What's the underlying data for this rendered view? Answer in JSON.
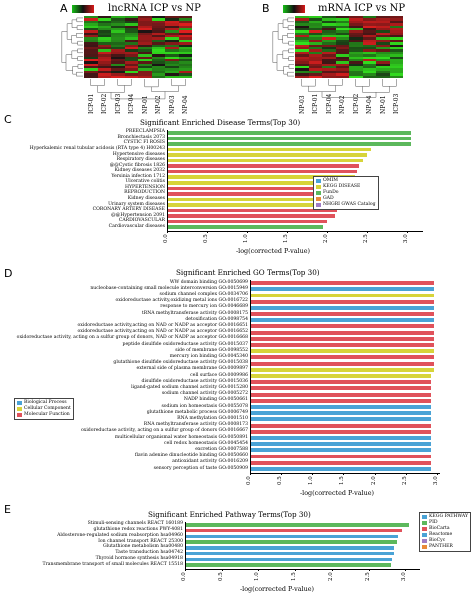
{
  "colors": {
    "green": "#5cb85c",
    "yellow": "#d7d43a",
    "red": "#e0525b",
    "blue": "#4aa3d6",
    "purple": "#a07cc5",
    "orange": "#e98b3a",
    "heat_green": "#18c018",
    "heat_red": "#d81818",
    "heat_dark": "#101010"
  },
  "panel_a": {
    "letter": "A",
    "title": "lncRNA ICP vs NP",
    "samples": [
      "ICP-01",
      "ICP-02",
      "ICP-03",
      "ICP-04",
      "NP-01",
      "NP-02",
      "NP-03",
      "NP-04"
    ]
  },
  "panel_b": {
    "letter": "B",
    "title": "mRNA ICP vs NP",
    "samples": [
      "NP-03",
      "ICP-01",
      "ICP-04",
      "NP-02",
      "ICP-02",
      "NP-04",
      "NP-01",
      "ICP-03"
    ]
  },
  "panel_c": {
    "letter": "C"
  },
  "panel_d": {
    "letter": "D"
  },
  "panel_e": {
    "letter": "E"
  },
  "chart_data": [
    {
      "type": "bar",
      "orientation": "horizontal",
      "title": "Significant Enriched Disease Terms(Top 30)",
      "xlabel": "-log(corrected P-value)",
      "xlim": [
        0,
        3.2
      ],
      "xticks": [
        "0.0",
        "0.5",
        "1.0",
        "1.5",
        "2.0",
        "2.5",
        "3.0"
      ],
      "legend_position": "right",
      "legend": [
        {
          "name": "OMIM",
          "color": "#4aa3d6"
        },
        {
          "name": "KEGG DISEASE",
          "color": "#d7d43a"
        },
        {
          "name": "FunDo",
          "color": "#5cb85c"
        },
        {
          "name": "GAD",
          "color": "#e98b3a"
        },
        {
          "name": "NHGRI GWAS Catalog",
          "color": "#a07cc5"
        }
      ],
      "categories": [
        "PREECLAMPSIA",
        "Bronchiectasis 2073",
        "CYSTIC FI ROSIS",
        "Hyperkalemic renal tubular acidosis (RTA type 4) H00243",
        "Hypertensive diseases",
        "Respiratory diseases",
        "@@Cystic fibrosis 1826",
        "Kidney diseases 2032",
        "Yersinia infection 1712",
        "Ulcerative colitis",
        "HYPERTENSION",
        "REPRODUCTION",
        "Kidney diseases",
        "Urinary system diseases",
        "CORONARY ARTERY DISEASE",
        "@@Hypertension 2091",
        "CARDIOVASCULAR",
        "Cardiovascular diseases"
      ],
      "values": [
        3.05,
        3.05,
        3.05,
        2.55,
        2.5,
        2.45,
        2.4,
        2.38,
        2.35,
        2.25,
        2.22,
        2.2,
        2.18,
        2.15,
        2.12,
        2.1,
        2.0,
        1.95
      ],
      "colors": [
        "#5cb85c",
        "#5cb85c",
        "#5cb85c",
        "#d7d43a",
        "#d7d43a",
        "#d7d43a",
        "#e0525b",
        "#e0525b",
        "#d7d43a",
        "#d7d43a",
        "#e0525b",
        "#e0525b",
        "#d7d43a",
        "#d7d43a",
        "#e0525b",
        "#e0525b",
        "#e0525b",
        "#5cb85c"
      ]
    },
    {
      "type": "bar",
      "orientation": "horizontal",
      "title": "Significant Enriched GO Terms(Top 30)",
      "xlabel": "-log(corrected P-value)",
      "xlim": [
        0,
        3.05
      ],
      "xticks": [
        "0.0",
        "0.5",
        "1.0",
        "1.5",
        "2.0",
        "2.5",
        "3.0"
      ],
      "legend_position": "left",
      "legend": [
        {
          "name": "Biological Process",
          "color": "#4aa3d6"
        },
        {
          "name": "Cellular Component",
          "color": "#d7d43a"
        },
        {
          "name": "Molecular Function",
          "color": "#e0525b"
        }
      ],
      "categories": [
        "WW domain binding GO:0050699",
        "nucleobase-containing small molecule interconversion GO:0015949",
        "sodium channel complex GO:0034706",
        "oxidoreductase activity,oxidizing metal ions GO:0016722",
        "response to mercury ion GO:0046689",
        "tRNA methyltransferase activity GO:0008175",
        "detoxification GO:0098754",
        "oxidoreductase activity,acting on NAD or NADP as acceptor GO:0016651",
        "oxidoreductase activity,acting on NAD or NADP as acceptor GO:0016652",
        "oxidoreductase activity, acting on a sulfur group of donors, NAD or NADP as acceptor GO:0016668",
        "peptide disulfide oxidoreductase activity GO:0015037",
        "side of membrane GO:0098552",
        "mercury ion binding GO:0045340",
        "glutathione disulfide oxidoreductase activity GO:0015038",
        "external side of plasma membrane GO:0009897",
        "cell surface GO:0009986",
        "disulfide oxidoreductase activity GO:0015036",
        "ligand-gated sodium channel activity GO:0015280",
        "sodium channel activity GO:0005272",
        "NADP binding GO:0050661",
        "sodium ion homeostasis GO:0055078",
        "glutathione metabolic process GO:0006749",
        "RNA methylation GO:0001510",
        "RNA methyltransferase activity GO:0008173",
        "oxidoreductase activity, acting on a sulfur group of donors GO:0016667",
        "multicellular organismal water homeostasis GO:0050891",
        "cell redox homeostasis GO:0045454",
        "excretion GO:0007588",
        "flavin adenine dinucleotide binding GO:0050660",
        "antioxidant activity GO:0016209",
        "sensory perception of taste GO:0050909"
      ],
      "values": [
        2.95,
        2.95,
        2.95,
        2.95,
        2.95,
        2.95,
        2.95,
        2.95,
        2.95,
        2.95,
        2.95,
        2.95,
        2.95,
        2.95,
        2.95,
        2.9,
        2.9,
        2.9,
        2.9,
        2.9,
        2.9,
        2.9,
        2.9,
        2.9,
        2.9,
        2.9,
        2.9,
        2.9,
        2.9,
        2.9,
        2.9
      ],
      "colors": [
        "#e0525b",
        "#4aa3d6",
        "#d7d43a",
        "#e0525b",
        "#4aa3d6",
        "#e0525b",
        "#4aa3d6",
        "#e0525b",
        "#e0525b",
        "#e0525b",
        "#e0525b",
        "#d7d43a",
        "#e0525b",
        "#e0525b",
        "#d7d43a",
        "#d7d43a",
        "#e0525b",
        "#e0525b",
        "#e0525b",
        "#e0525b",
        "#4aa3d6",
        "#4aa3d6",
        "#4aa3d6",
        "#e0525b",
        "#e0525b",
        "#4aa3d6",
        "#4aa3d6",
        "#4aa3d6",
        "#e0525b",
        "#e0525b",
        "#4aa3d6"
      ]
    },
    {
      "type": "bar",
      "orientation": "horizontal",
      "title": "Significant Enriched Pathway Terms(Top 30)",
      "xlabel": "-log(corrected P-value)",
      "xlim": [
        0,
        3.2
      ],
      "xticks": [
        "0.0",
        "0.5",
        "1.0",
        "1.5",
        "2.0",
        "2.5",
        "3.0"
      ],
      "legend_position": "right",
      "legend": [
        {
          "name": "KEGG PATHWAY",
          "color": "#4aa3d6"
        },
        {
          "name": "PID",
          "color": "#5cb85c"
        },
        {
          "name": "BioCarta",
          "color": "#e0525b"
        },
        {
          "name": "Reactome",
          "color": "#4aa3d6"
        },
        {
          "name": "BioCyc",
          "color": "#a07cc5"
        },
        {
          "name": "PANTHER",
          "color": "#e98b3a"
        }
      ],
      "categories": [
        "Stimuli-sensing channels REACT 160189",
        "glutathione redox reactions PWY-4081",
        "Aldosterone-regulated sodium reabsorption hsa04960",
        "Ion channel transport REACT 25300",
        "Glutathione metabolism hsa00480",
        "Taste transduction hsa04742",
        "Thyroid hormone synthesis hsa04918",
        "Transmembrane transport of small molecules REACT 15518"
      ],
      "values": [
        3.05,
        2.95,
        2.9,
        2.88,
        2.85,
        2.85,
        2.82,
        2.8
      ],
      "colors": [
        "#5cb85c",
        "#e0525b",
        "#4aa3d6",
        "#5cb85c",
        "#4aa3d6",
        "#4aa3d6",
        "#4aa3d6",
        "#5cb85c"
      ]
    }
  ]
}
